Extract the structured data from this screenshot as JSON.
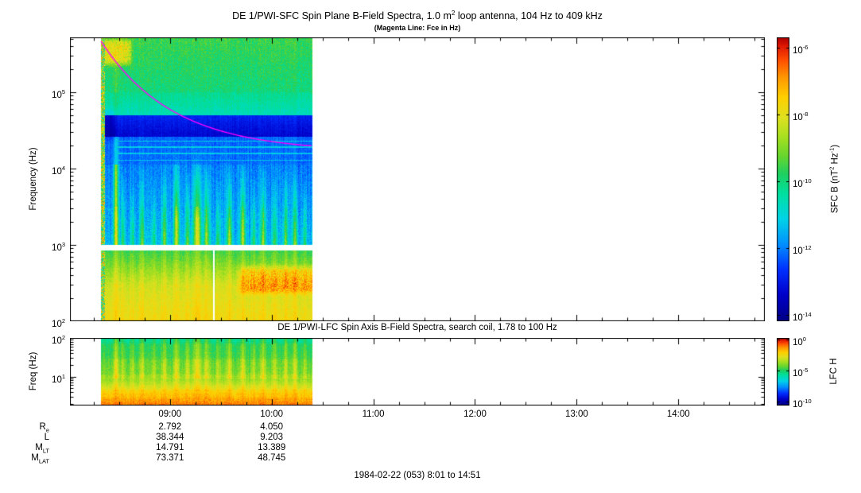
{
  "figure": {
    "background": "#ffffff",
    "footer": "1984-02-22 (053) 8:01 to 14:51"
  },
  "ephemeris": {
    "row_labels": [
      "R_e",
      "L",
      "M_LT",
      "M_LAT"
    ],
    "columns": [
      {
        "time": "09:00",
        "values": [
          "2.792",
          "38.344",
          "14.791",
          "73.371"
        ]
      },
      {
        "time": "10:00",
        "values": [
          "4.050",
          "9.203",
          "13.389",
          "48.745"
        ]
      }
    ]
  },
  "chart_data": [
    {
      "id": "sfc",
      "type": "heatmap",
      "title": "DE 1/PWI-SFC  Spin Plane B-Field Spectra, 1.0 m^2 loop antenna, 104 Hz to 409 kHz",
      "subtitle": "(Magenta Line: Fce in Hz)",
      "ylabel": "Frequency (Hz)",
      "ylog_range": [
        2.0,
        5.72
      ],
      "yticks": [
        {
          "log": 5,
          "label": "10^5"
        },
        {
          "log": 4,
          "label": "10^4"
        },
        {
          "log": 3,
          "label": "10^3"
        },
        {
          "log": 2,
          "label": "10^2"
        }
      ],
      "time_range": [
        "08:01",
        "14:51"
      ],
      "data_time_range": [
        "08:19",
        "10:24"
      ],
      "xticks": [
        "09:00",
        "10:00",
        "11:00",
        "12:00",
        "13:00",
        "14:00"
      ],
      "colorbar": {
        "label": "SFC B (nT^2 Hz^-1)",
        "log_top": -5.7,
        "log_bottom": -14.2,
        "ticks": [
          {
            "log": -6,
            "label": "10^-6"
          },
          {
            "log": -8,
            "label": "10^-8"
          },
          {
            "log": -10,
            "label": "10^-10"
          },
          {
            "log": -12,
            "label": "10^-12"
          },
          {
            "log": -14,
            "label": "10^-14"
          }
        ]
      },
      "colormap": [
        [
          0.0,
          "#000085"
        ],
        [
          0.09,
          "#0000c8"
        ],
        [
          0.18,
          "#0030ff"
        ],
        [
          0.27,
          "#0090ff"
        ],
        [
          0.36,
          "#00d4e8"
        ],
        [
          0.45,
          "#00e0a0"
        ],
        [
          0.52,
          "#20d060"
        ],
        [
          0.58,
          "#66d630"
        ],
        [
          0.65,
          "#a8e020"
        ],
        [
          0.72,
          "#e0e020"
        ],
        [
          0.79,
          "#ffd000"
        ],
        [
          0.86,
          "#ff9800"
        ],
        [
          0.92,
          "#ff5000"
        ],
        [
          0.97,
          "#e01800"
        ],
        [
          1.0,
          "#b00000"
        ]
      ],
      "fce_line": {
        "color": "#ff00ff",
        "start_log": 5.68,
        "end_log": 4.22,
        "tau": 0.34
      },
      "edge_noise": true,
      "bands": [
        {
          "l0": 2.0,
          "l1": 2.45,
          "v0": 0.75,
          "v1": 0.7,
          "noise": 0.035,
          "sgain": 0.12
        },
        {
          "l0": 2.45,
          "l1": 2.93,
          "v0": 0.7,
          "v1": 0.53,
          "noise": 0.035,
          "sgain": 0.18
        },
        {
          "l0": 2.93,
          "l1": 3.0,
          "gap": true
        },
        {
          "l0": 3.0,
          "l1": 3.5,
          "v0": 0.33,
          "v1": 0.29,
          "noise": 0.05,
          "sgain": 1.0
        },
        {
          "l0": 3.5,
          "l1": 4.05,
          "v0": 0.29,
          "v1": 0.26,
          "noise": 0.04,
          "sgain": 0.85
        },
        {
          "l0": 4.05,
          "l1": 4.42,
          "v0": 0.24,
          "v1": 0.23,
          "noise": 0.03,
          "sgain": 0.3
        },
        {
          "l0": 4.42,
          "l1": 4.7,
          "v0": 0.1,
          "v1": 0.16,
          "noise": 0.025,
          "sgain": 0.06
        },
        {
          "l0": 4.7,
          "l1": 5.0,
          "v0": 0.42,
          "v1": 0.47,
          "noise": 0.035,
          "sgain": 0.12
        },
        {
          "l0": 5.0,
          "l1": 5.72,
          "v0": 0.49,
          "v1": 0.54,
          "noise": 0.05,
          "sgain": 0.22
        }
      ],
      "hlines": [
        {
          "l": 4.36,
          "amp": 0.13
        },
        {
          "l": 4.28,
          "amp": 0.12
        },
        {
          "l": 4.2,
          "amp": 0.11
        },
        {
          "l": 4.11,
          "amp": 0.1
        }
      ],
      "streaks": [
        [
          0.072,
          0.45,
          0.01,
          5.72
        ],
        [
          0.105,
          0.22,
          0.008,
          4.0
        ],
        [
          0.15,
          0.2,
          0.009,
          3.9
        ],
        [
          0.195,
          0.26,
          0.01,
          4.05
        ],
        [
          0.25,
          0.2,
          0.009,
          3.9
        ],
        [
          0.3,
          0.3,
          0.01,
          4.1
        ],
        [
          0.357,
          0.4,
          0.012,
          4.35
        ],
        [
          0.41,
          0.28,
          0.01,
          4.0
        ],
        [
          0.455,
          0.42,
          0.017,
          4.3
        ],
        [
          0.5,
          0.32,
          0.012,
          4.15
        ],
        [
          0.553,
          0.24,
          0.01,
          3.9
        ],
        [
          0.607,
          0.32,
          0.012,
          4.1
        ],
        [
          0.67,
          0.36,
          0.012,
          4.2
        ],
        [
          0.722,
          0.24,
          0.01,
          3.9
        ],
        [
          0.766,
          0.33,
          0.011,
          4.05
        ],
        [
          0.82,
          0.24,
          0.01,
          3.9
        ],
        [
          0.872,
          0.28,
          0.01,
          4.0
        ],
        [
          0.917,
          0.28,
          0.011,
          4.0
        ],
        [
          0.963,
          0.24,
          0.009,
          3.9
        ]
      ],
      "blobs": [
        {
          "t0": -0.1,
          "t1": 0.16,
          "l0": 5.3,
          "l1": 5.75,
          "amp": 0.2,
          "speckle": 0.06
        },
        {
          "t0": -0.1,
          "t1": 0.09,
          "l0": 4.3,
          "l1": 4.85,
          "amp": -0.06,
          "speckle": 0
        },
        {
          "t0": 0.62,
          "t1": 1.1,
          "l0": 2.3,
          "l1": 2.78,
          "amp": 0.14,
          "speckle": 0.07
        }
      ],
      "gap_cols": [
        {
          "t0": 0.528,
          "t1": 0.537,
          "l0": 2.0,
          "l1": 2.93
        }
      ]
    },
    {
      "id": "lfc",
      "type": "heatmap",
      "title": "DE 1/PWI-LFC  Spin Axis B-Field Spectra, search coil, 1.78 to 100 Hz",
      "ylabel": "Freq (Hz)",
      "ylog_range": [
        0.25,
        2.0
      ],
      "yticks": [
        {
          "log": 2,
          "label": "10^2"
        },
        {
          "log": 1,
          "label": "10^1"
        }
      ],
      "colorbar": {
        "label": "LFC H",
        "log_top": 0.3,
        "log_bottom": -10.7,
        "ticks": [
          {
            "log": 0,
            "label": "10^0"
          },
          {
            "log": -5,
            "label": "10^-5"
          },
          {
            "log": -10,
            "label": "10^-10"
          }
        ]
      },
      "rows": 13,
      "bands": [
        {
          "l0": 0.25,
          "l1": 0.42,
          "v0": 0.9,
          "v1": 0.83,
          "noise": 0.045,
          "sgain": 0.05
        },
        {
          "l0": 0.42,
          "l1": 0.62,
          "v0": 0.82,
          "v1": 0.74,
          "noise": 0.03,
          "sgain": 0.1
        },
        {
          "l0": 0.62,
          "l1": 0.95,
          "v0": 0.74,
          "v1": 0.62,
          "noise": 0.03,
          "sgain": 0.2
        },
        {
          "l0": 0.95,
          "l1": 1.45,
          "v0": 0.62,
          "v1": 0.55,
          "noise": 0.035,
          "sgain": 0.4
        },
        {
          "l0": 1.45,
          "l1": 2.0,
          "v0": 0.55,
          "v1": 0.46,
          "noise": 0.03,
          "sgain": 0.3
        }
      ]
    }
  ]
}
